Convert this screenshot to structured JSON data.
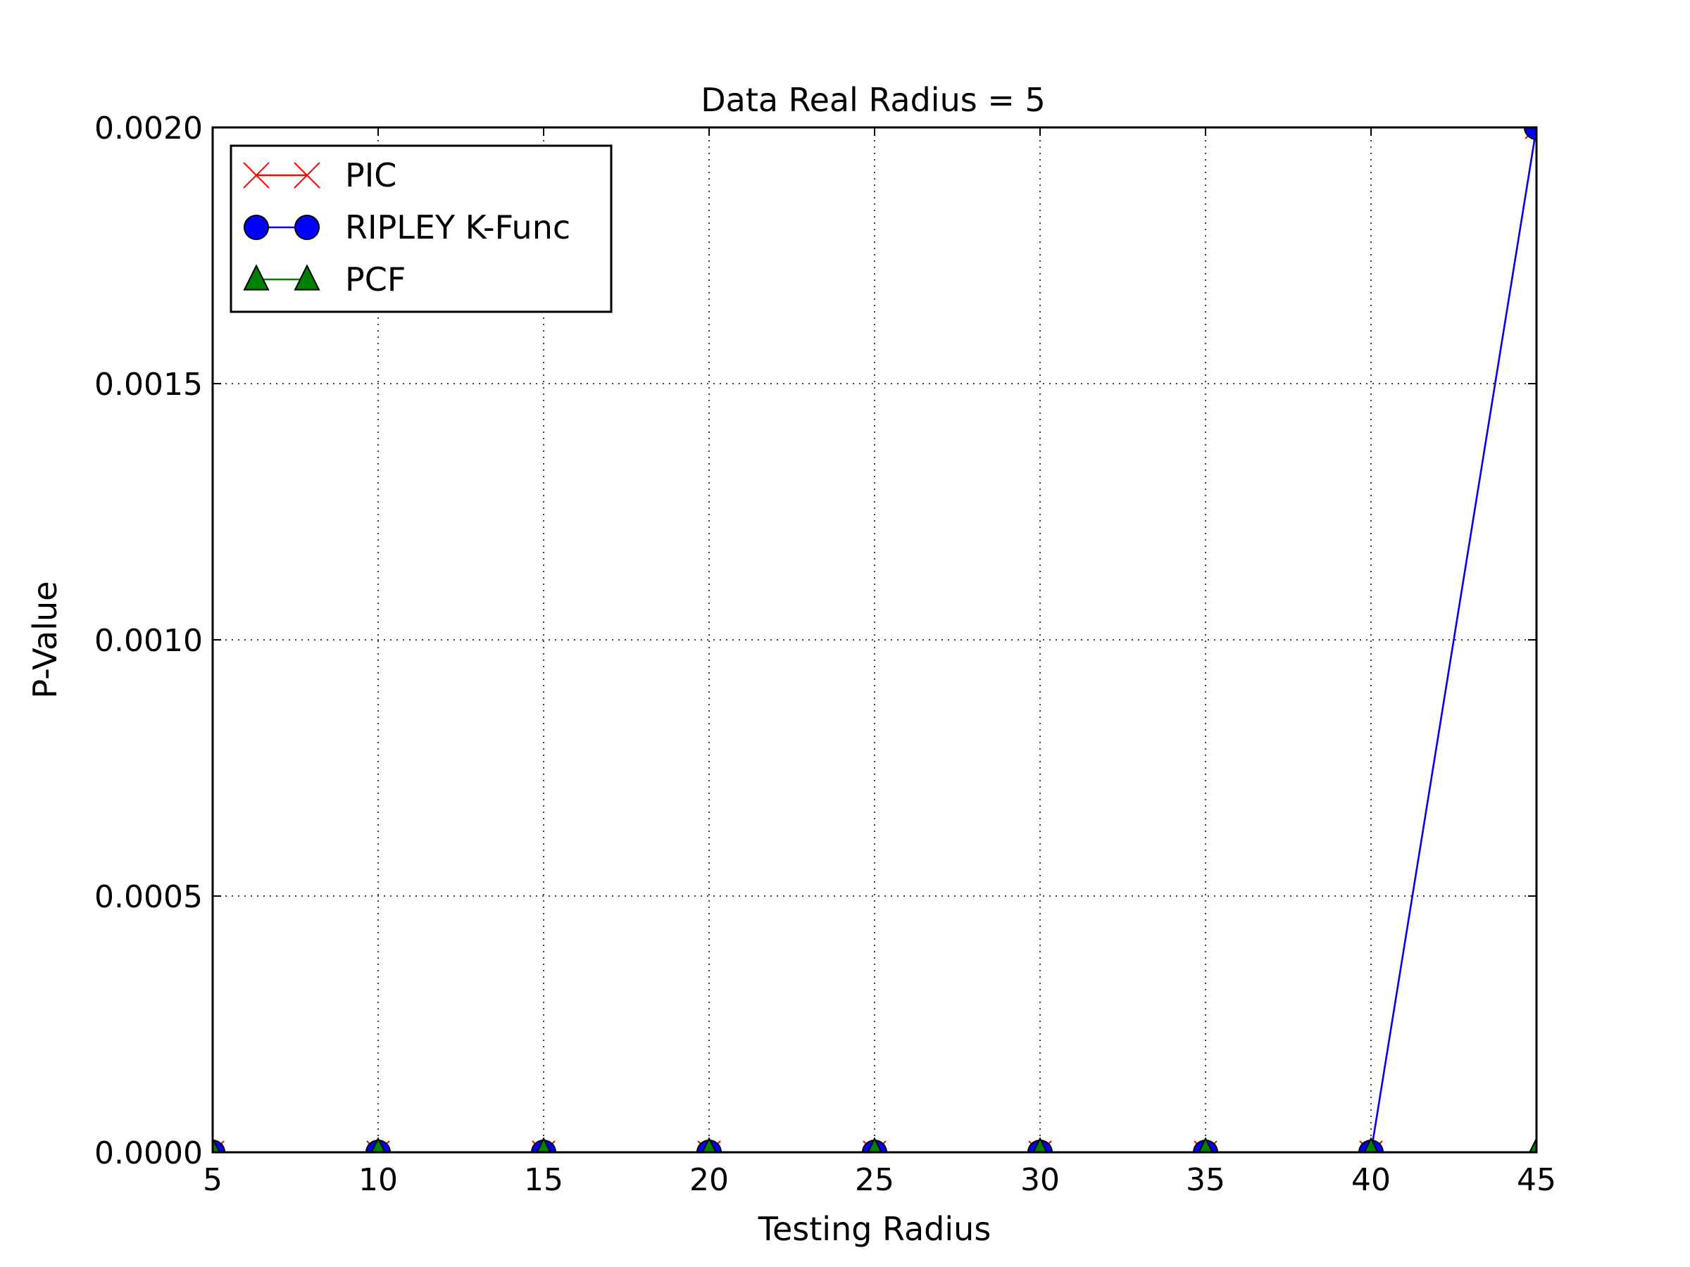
{
  "chart_data": {
    "type": "line",
    "title": "Data Real Radius = 5",
    "xlabel": "Testing Radius",
    "ylabel": "P-Value",
    "x": [
      5,
      10,
      15,
      20,
      25,
      30,
      35,
      40,
      45
    ],
    "xlim": [
      5,
      45
    ],
    "ylim": [
      0,
      0.002
    ],
    "xticks": [
      "5",
      "10",
      "15",
      "20",
      "25",
      "30",
      "35",
      "40",
      "45"
    ],
    "yticks": [
      "0.0000",
      "0.0005",
      "0.0010",
      "0.0015",
      "0.0020"
    ],
    "grid": true,
    "legend_position": "top-left",
    "series": [
      {
        "name": "PIC",
        "marker": "x",
        "color": "#ff0000",
        "values": [
          0,
          0,
          0,
          0,
          0,
          0,
          0,
          0,
          0.002
        ]
      },
      {
        "name": "RIPLEY K-Func",
        "marker": "circle",
        "color": "#0000ff",
        "values": [
          0,
          0,
          0,
          0,
          0,
          0,
          0,
          0,
          0.002
        ]
      },
      {
        "name": "PCF",
        "marker": "triangle",
        "color": "#008000",
        "values": [
          0,
          0,
          0,
          0,
          0,
          0,
          0,
          0,
          0
        ]
      }
    ]
  }
}
